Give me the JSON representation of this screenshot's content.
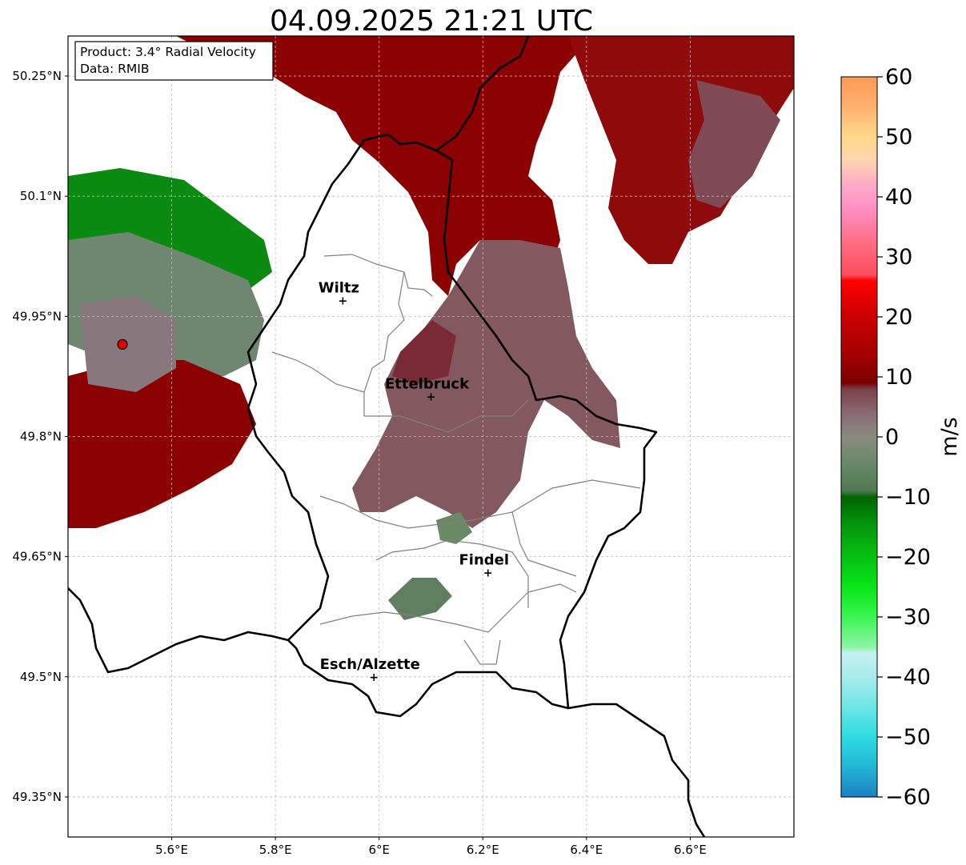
{
  "title": "04.09.2025 21:21 UTC",
  "info_box": {
    "product": "Product: 3.4° Radial Velocity",
    "data_source": "Data: RMIB"
  },
  "axes": {
    "lat_ticks": [
      "50.25°N",
      "50.1°N",
      "49.95°N",
      "49.8°N",
      "49.65°N",
      "49.5°N",
      "49.35°N"
    ],
    "lon_ticks": [
      "5.6°E",
      "5.8°E",
      "6°E",
      "6.2°E",
      "6.4°E",
      "6.6°E"
    ],
    "lat_range": [
      49.3,
      50.3
    ],
    "lon_range": [
      5.4,
      6.8
    ]
  },
  "cities": [
    {
      "name": "Wiltz",
      "lat": 49.97,
      "lon": 5.93
    },
    {
      "name": "Ettelbruck",
      "lat": 49.85,
      "lon": 6.1
    },
    {
      "name": "Findel",
      "lat": 49.63,
      "lon": 6.21
    },
    {
      "name": "Esch/Alzette",
      "lat": 49.5,
      "lon": 5.99
    }
  ],
  "radar_site": {
    "lat": 49.915,
    "lon": 5.505,
    "color": "#e00000"
  },
  "colorbar": {
    "label": "m/s",
    "min": -60,
    "max": 60,
    "ticks": [
      "60",
      "50",
      "40",
      "30",
      "20",
      "10",
      "0",
      "−10",
      "−20",
      "−30",
      "−40",
      "−50",
      "−60"
    ],
    "stops": [
      {
        "v": -60,
        "c": "#1f7fc4"
      },
      {
        "v": -55,
        "c": "#22b6d6"
      },
      {
        "v": -50,
        "c": "#2ddbe0"
      },
      {
        "v": -45,
        "c": "#6ee6e6"
      },
      {
        "v": -40,
        "c": "#a8ecec"
      },
      {
        "v": -36,
        "c": "#c6f1f0"
      },
      {
        "v": -35,
        "c": "#8ef5a6"
      },
      {
        "v": -30,
        "c": "#3bf552"
      },
      {
        "v": -25,
        "c": "#08e616"
      },
      {
        "v": -20,
        "c": "#06c012"
      },
      {
        "v": -15,
        "c": "#049a0c"
      },
      {
        "v": -10,
        "c": "#006400"
      },
      {
        "v": -9,
        "c": "#4f7a50"
      },
      {
        "v": -4,
        "c": "#6b8a6a"
      },
      {
        "v": 0,
        "c": "#8a8a80"
      },
      {
        "v": 4,
        "c": "#8a6a72"
      },
      {
        "v": 8,
        "c": "#7a3e48"
      },
      {
        "v": 9,
        "c": "#7a0000"
      },
      {
        "v": 14,
        "c": "#a60000"
      },
      {
        "v": 20,
        "c": "#cc0000"
      },
      {
        "v": 26,
        "c": "#ff0000"
      },
      {
        "v": 27,
        "c": "#ff4d5e"
      },
      {
        "v": 32,
        "c": "#ff6b80"
      },
      {
        "v": 38,
        "c": "#ff8fc4"
      },
      {
        "v": 42,
        "c": "#ffaac8"
      },
      {
        "v": 46,
        "c": "#ffd5b0"
      },
      {
        "v": 50,
        "c": "#ffd88a"
      },
      {
        "v": 55,
        "c": "#ffb070"
      },
      {
        "v": 60,
        "c": "#ff9a55"
      }
    ]
  },
  "colors": {
    "receding_dark": "#8b0000",
    "receding_mauve": "#7f4a55",
    "near_zero": "#86707a",
    "approaching_gray_green": "#5f7f5f",
    "approaching_green": "#0a8a10",
    "border": "#000000",
    "canton_lines": "#808080",
    "grid": "#bbbbbb"
  }
}
